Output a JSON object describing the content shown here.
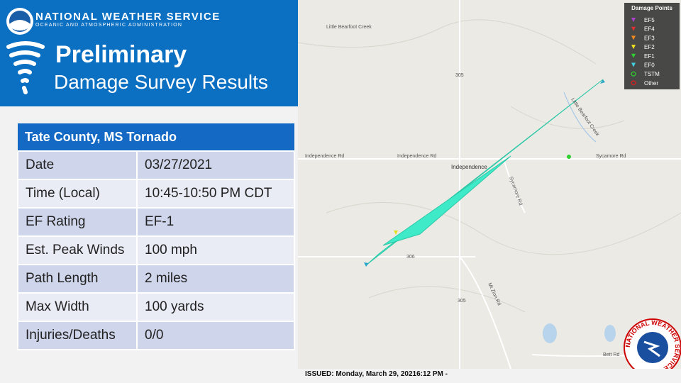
{
  "header": {
    "agency": "NATIONAL WEATHER SERVICE",
    "agency_sub": "OCEANIC AND ATMOSPHERIC ADMINISTRATION",
    "title_line1": "Preliminary",
    "title_line2": "Damage Survey Results"
  },
  "table": {
    "title": "Tate County, MS Tornado",
    "rows": [
      [
        "Date",
        "03/27/2021"
      ],
      [
        "Time (Local)",
        "10:45-10:50 PM CDT"
      ],
      [
        "EF Rating",
        "EF-1"
      ],
      [
        "Est. Peak Winds",
        "100 mph"
      ],
      [
        "Path Length",
        "2 miles"
      ],
      [
        "Max Width",
        "100 yards"
      ],
      [
        "Injuries/Deaths",
        "0/0"
      ]
    ]
  },
  "legend": {
    "title": "Damage Points",
    "items": [
      {
        "label": "EF5",
        "color": "#b040d0"
      },
      {
        "label": "EF4",
        "color": "#e03030"
      },
      {
        "label": "EF3",
        "color": "#f08a20"
      },
      {
        "label": "EF2",
        "color": "#f0e020"
      },
      {
        "label": "EF1",
        "color": "#30d030"
      },
      {
        "label": "EF0",
        "color": "#40d0e0"
      },
      {
        "label": "TSTM",
        "color": "#30c030"
      },
      {
        "label": "Other",
        "color": "#d02020"
      }
    ]
  },
  "map_labels": {
    "town": "Independence",
    "road1": "Independence Rd",
    "road2": "Sycamore Rd",
    "road3": "Sycamore Rd",
    "road4": "Mt Zion Rd",
    "road5": "Bett Rd",
    "hw1": "305",
    "hw2": "306",
    "hw3": "305",
    "creek1": "Little Bearfoot Creek",
    "creek2": "Little Bearfoot Creek"
  },
  "issued": "ISSUED: Monday, March 29, 20216:12  PM -",
  "logo_text": "NATIONAL WEATHER SERVICE"
}
